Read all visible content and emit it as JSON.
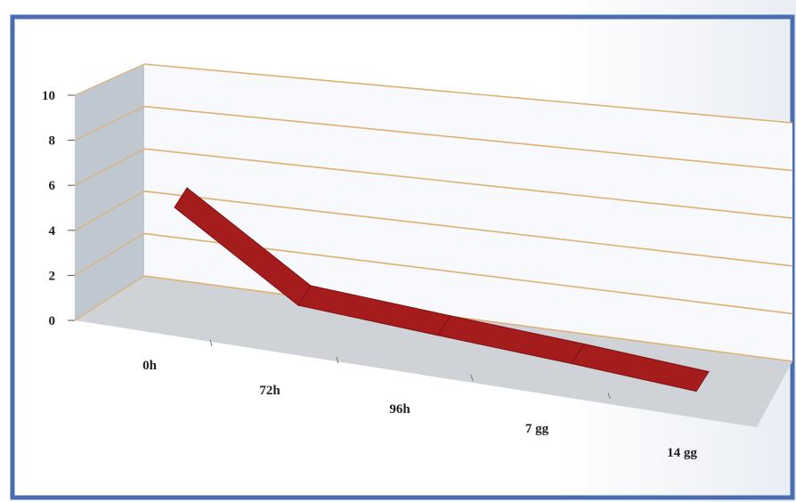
{
  "chart_data": {
    "type": "line",
    "style": "3d",
    "categories": [
      "0h",
      "72h",
      "96h",
      "7 gg",
      "14 gg"
    ],
    "series": [
      {
        "values": [
          6.8,
          2.0,
          1.3,
          0.7,
          0.1
        ]
      }
    ],
    "y_ticks": [
      "0",
      "2",
      "4",
      "6",
      "8",
      "10"
    ],
    "ylim": [
      0,
      10
    ],
    "grid": true,
    "legend": "none",
    "colors": {
      "line": "#a51c1c",
      "line_edge": "#7f1010",
      "gridline": "#e0b070",
      "back_wall": "#f7f9fc",
      "side_wall": "#bfc7d1",
      "floor": "#cfd3d8",
      "frame": "#4a6db2"
    }
  }
}
